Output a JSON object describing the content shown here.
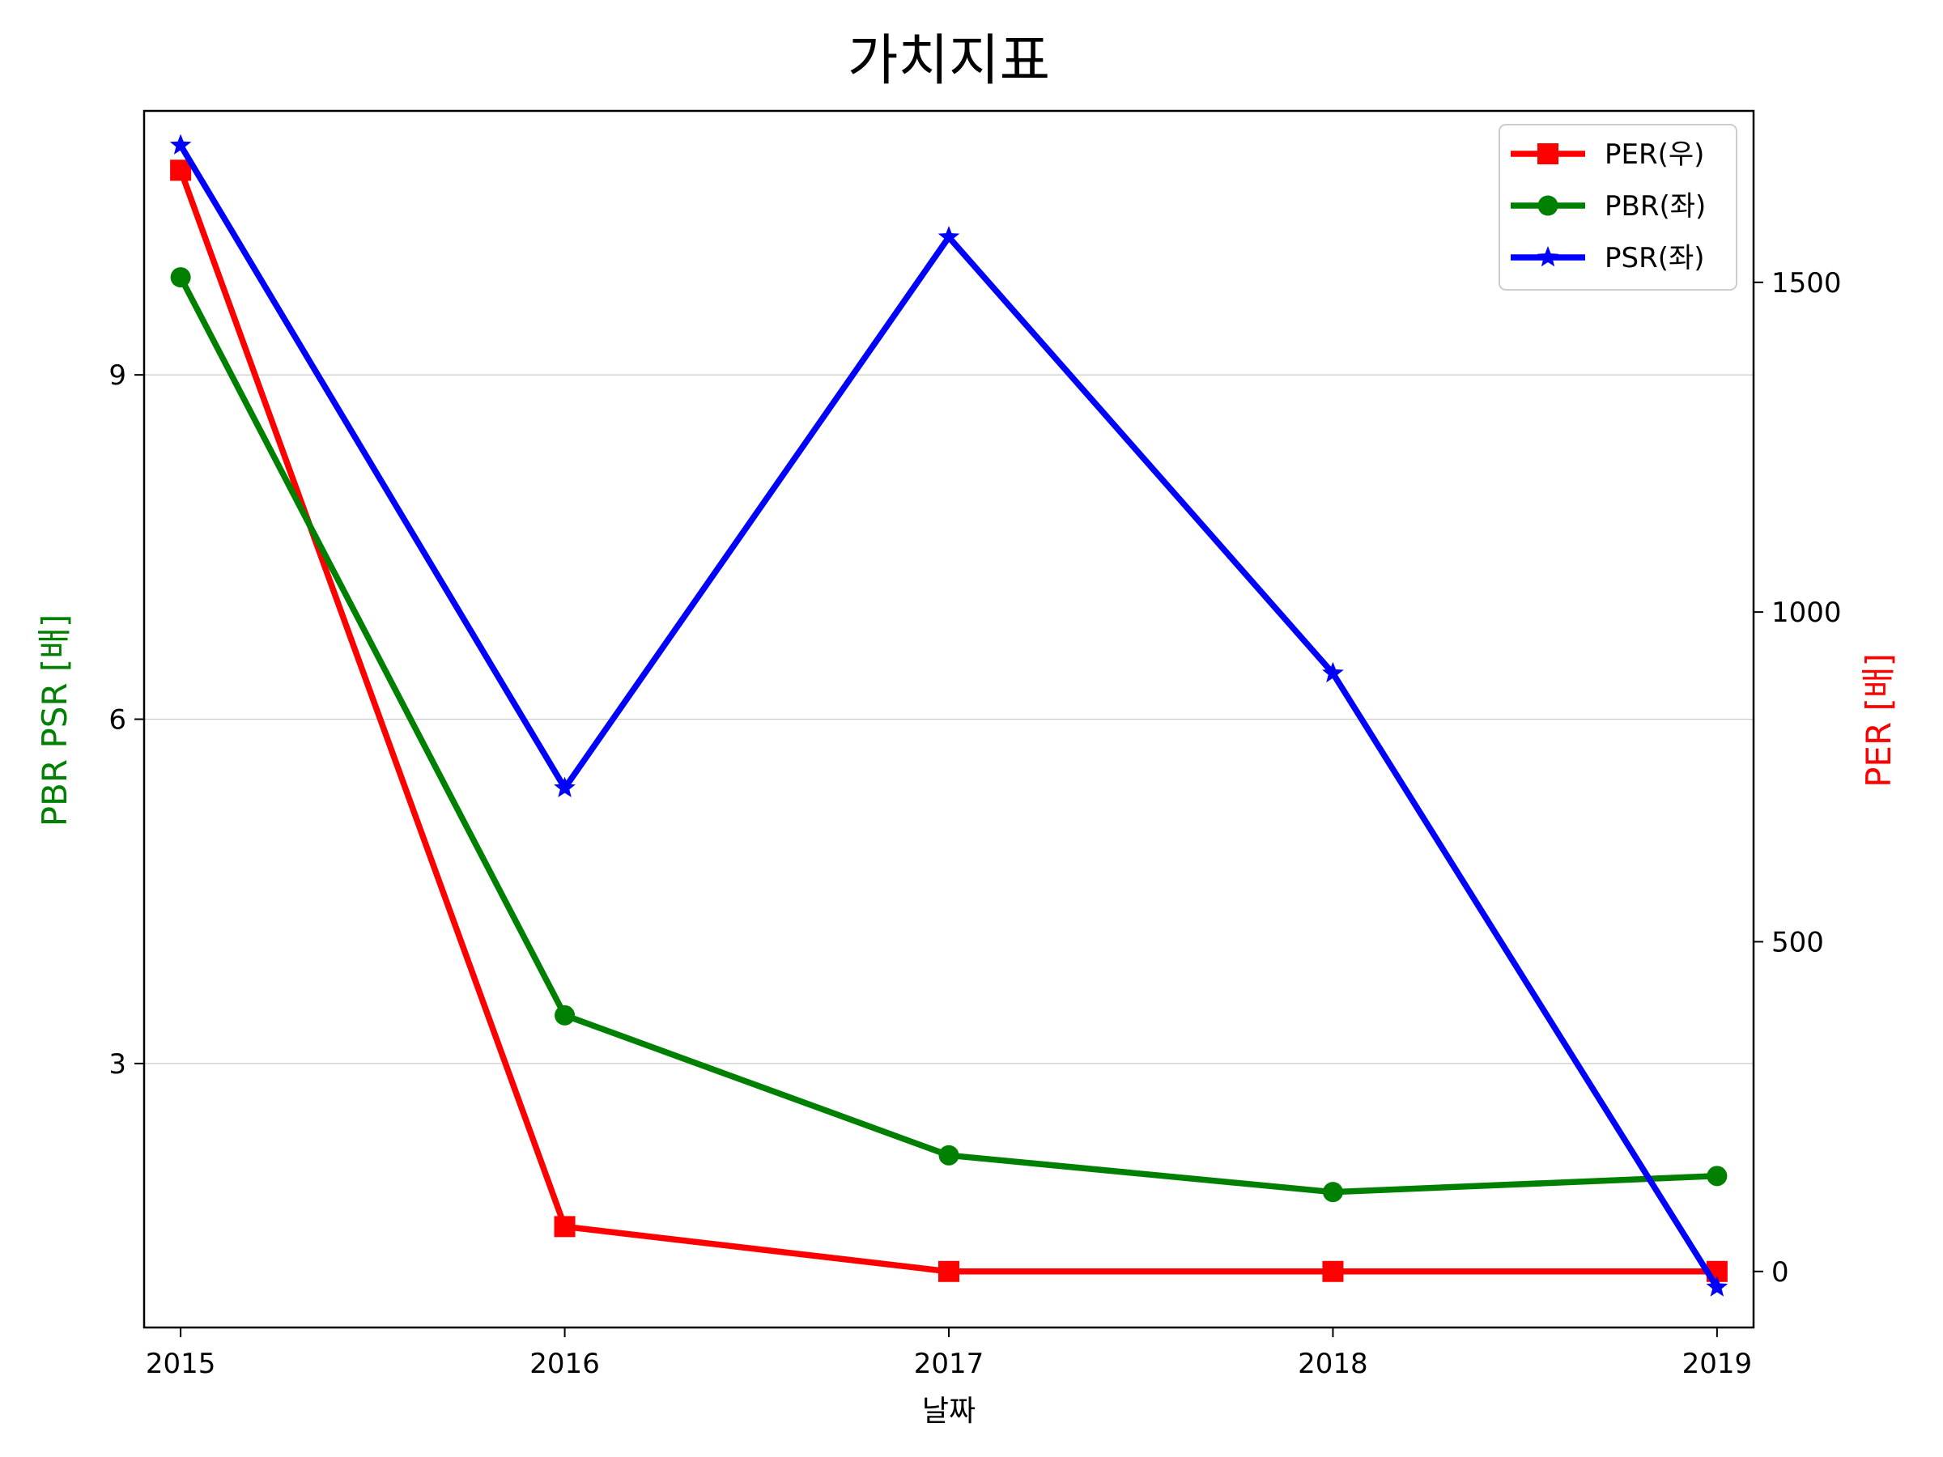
{
  "chart_data": {
    "type": "line",
    "title": "가치지표",
    "xlabel": "날짜",
    "ylabel_left": "PBR PSR [배]",
    "ylabel_right": "PER [배]",
    "categories": [
      "2015",
      "2016",
      "2017",
      "2018",
      "2019"
    ],
    "ylim_left": [
      0.7,
      11.3
    ],
    "yticks_left": [
      3,
      6,
      9
    ],
    "ylim_right": [
      -85,
      1760
    ],
    "yticks_right": [
      0,
      500,
      1000,
      1500
    ],
    "grid": "horizontal (left axis)",
    "legend_position": "top-right",
    "series": [
      {
        "name": "PER(우)",
        "axis": "right",
        "color": "#ff0000",
        "marker": "square",
        "values": [
          1670,
          68,
          0,
          0,
          0
        ]
      },
      {
        "name": "PBR(좌)",
        "axis": "left",
        "color": "#008000",
        "marker": "circle",
        "values": [
          9.85,
          3.42,
          2.2,
          1.88,
          2.02
        ]
      },
      {
        "name": "PSR(좌)",
        "axis": "left",
        "color": "#0000ff",
        "marker": "star",
        "values": [
          11.0,
          5.4,
          10.2,
          6.4,
          1.05
        ]
      }
    ]
  }
}
